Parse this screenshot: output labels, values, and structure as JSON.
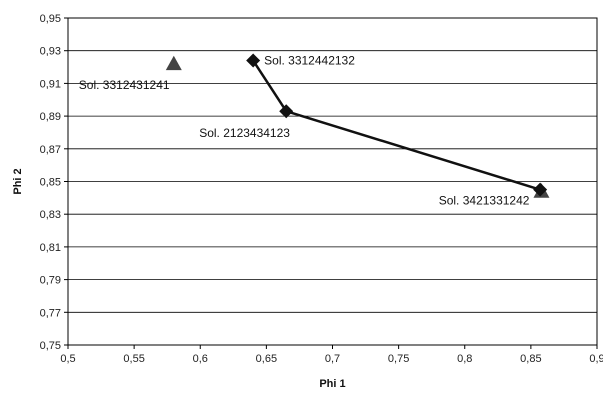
{
  "chart_data": {
    "type": "scatter",
    "title": "",
    "xlabel": "Phi 1",
    "ylabel": "Phi 2",
    "xlim": [
      0.5,
      0.9
    ],
    "ylim": [
      0.75,
      0.95
    ],
    "x_ticks": [
      "0,5",
      "0,55",
      "0,6",
      "0,65",
      "0,7",
      "0,75",
      "0,8",
      "0,85",
      "0,9"
    ],
    "y_ticks": [
      "0,75",
      "0,77",
      "0,79",
      "0,81",
      "0,83",
      "0,85",
      "0,87",
      "0,89",
      "0,91",
      "0,93",
      "0,95"
    ],
    "grid": "horizontal",
    "series": [
      {
        "marker": "diamond",
        "connected": true,
        "color": "#111111",
        "points": [
          {
            "x": 0.64,
            "y": 0.924,
            "label": "Sol. 3312442132"
          },
          {
            "x": 0.665,
            "y": 0.893,
            "label": "Sol. 2123434123"
          },
          {
            "x": 0.857,
            "y": 0.845,
            "label": ""
          }
        ]
      },
      {
        "marker": "triangle",
        "connected": false,
        "color": "#444444",
        "points": [
          {
            "x": 0.58,
            "y": 0.922,
            "label": "Sol. 3312431241"
          },
          {
            "x": 0.858,
            "y": 0.844,
            "label": "Sol. 3421331242"
          }
        ]
      }
    ]
  }
}
